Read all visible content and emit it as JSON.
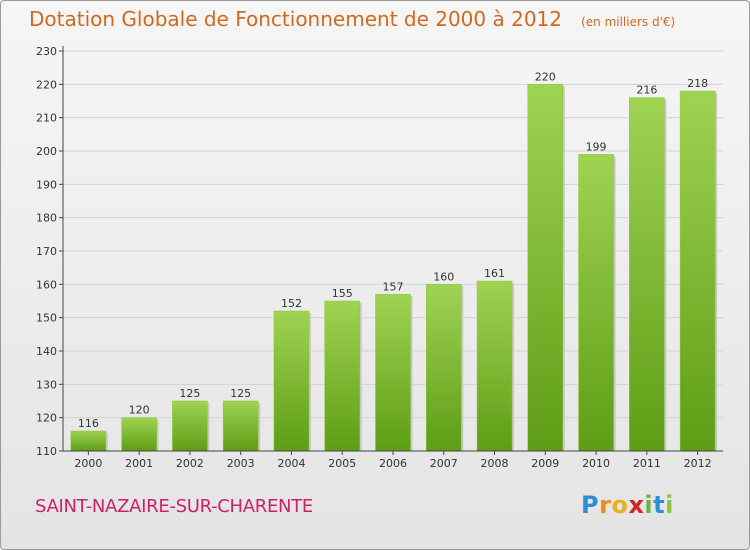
{
  "chart_data": {
    "type": "bar",
    "title": "Dotation Globale de Fonctionnement de 2000 à 2012",
    "subtitle": "(en milliers d'€)",
    "categories": [
      "2000",
      "2001",
      "2002",
      "2003",
      "2004",
      "2005",
      "2006",
      "2007",
      "2008",
      "2009",
      "2010",
      "2011",
      "2012"
    ],
    "values": [
      116,
      120,
      125,
      125,
      152,
      155,
      157,
      160,
      161,
      220,
      199,
      216,
      218
    ],
    "ylim": [
      110,
      230
    ],
    "yticks": [
      110,
      120,
      130,
      140,
      150,
      160,
      170,
      180,
      190,
      200,
      210,
      220,
      230
    ],
    "grid": true,
    "bar_color_top": "#9fd352",
    "bar_color_bottom": "#5e9d16",
    "label_color": "#333333"
  },
  "commune": "SAINT-NAZAIRE-SUR-CHARENTE",
  "logo": {
    "text": "Proxiti",
    "colors": [
      "#2e8fd6",
      "#ef8a1d",
      "#e8b21e",
      "#d0262a",
      "#6cb33f",
      "#2e8fd6",
      "#8bc43f"
    ]
  }
}
